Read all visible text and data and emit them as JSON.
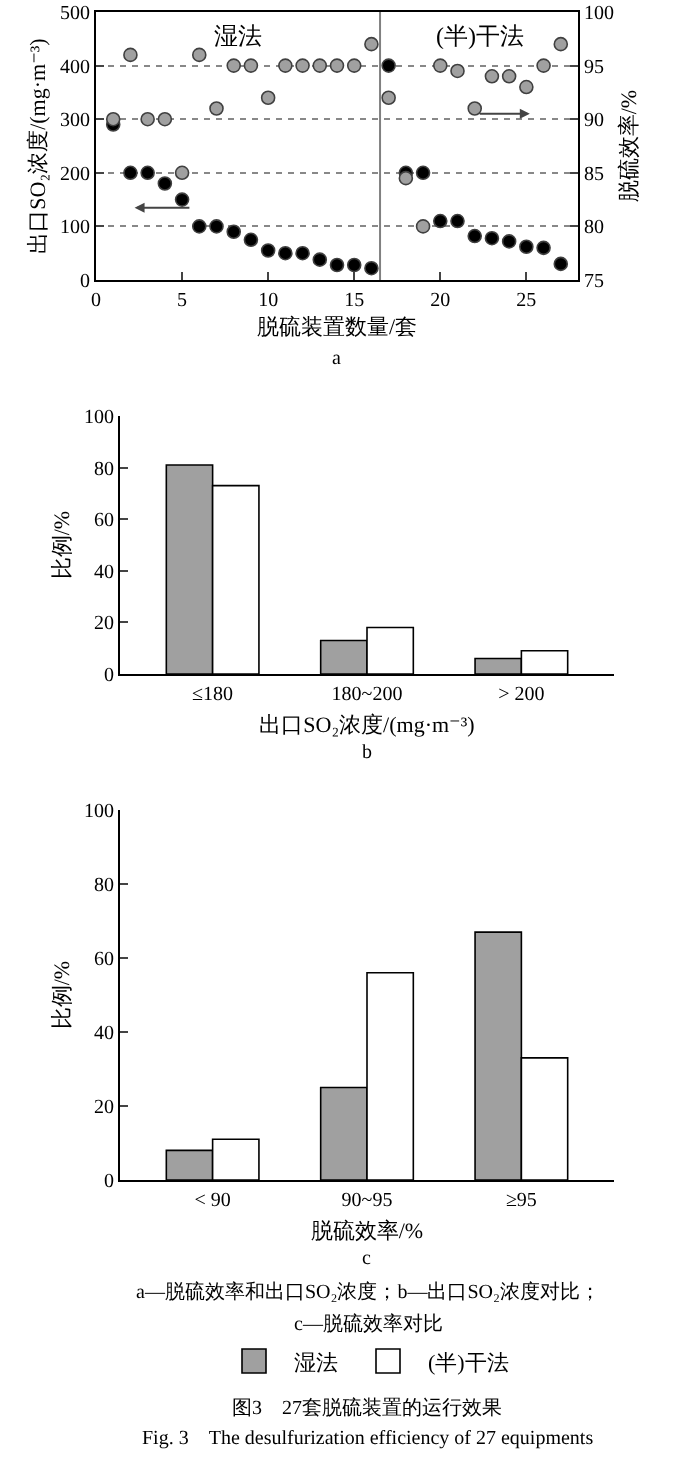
{
  "chart_data": [
    {
      "type": "scatter",
      "xlabel": "脱硫装置数量/套",
      "ylabel": "出口SO₂浓度/(mg·m⁻³)",
      "y2label": "脱硫效率/%",
      "x": [
        1,
        2,
        3,
        4,
        5,
        6,
        7,
        8,
        9,
        10,
        11,
        12,
        13,
        14,
        15,
        16,
        17,
        18,
        19,
        20,
        21,
        22,
        23,
        24,
        25,
        26,
        27
      ],
      "series": [
        {
          "color": "#000000",
          "values": [
            290,
            200,
            200,
            180,
            150,
            100,
            100,
            90,
            75,
            55,
            50,
            50,
            38,
            28,
            28,
            22,
            400,
            200,
            200,
            110,
            110,
            82,
            78,
            72,
            62,
            60,
            30
          ]
        },
        {
          "color": "#a0a0a0",
          "axis": "y2",
          "values": [
            90,
            96,
            90,
            90,
            85,
            96,
            91,
            95,
            95,
            92,
            95,
            95,
            95,
            95,
            95,
            97,
            92,
            84.5,
            80,
            95,
            94.5,
            91,
            94,
            94,
            93,
            95,
            97
          ]
        }
      ],
      "xlim": [
        0,
        28
      ],
      "xticks": [
        0,
        5,
        10,
        15,
        20,
        25
      ],
      "ylim": [
        0,
        500
      ],
      "yticks": [
        0,
        100,
        200,
        300,
        400,
        500
      ],
      "y2lim": [
        75,
        100
      ],
      "y2ticks": [
        75,
        80,
        85,
        90,
        95,
        100
      ],
      "grid": "y",
      "marker": "circle",
      "legend": false,
      "ref_lines": [
        {
          "axis": "x",
          "value": 16.5,
          "color": "#808080"
        }
      ],
      "annotations": [
        "湿法",
        "(半)干法",
        "a"
      ]
    },
    {
      "type": "bar",
      "xlabel": "出口SO₂浓度/(mg·m⁻³)",
      "ylabel": "比例/%",
      "categories": [
        "≤180",
        "180~200",
        "> 200"
      ],
      "series": [
        {
          "color": "#a0a0a0",
          "values": [
            81,
            13,
            6
          ]
        },
        {
          "color": "#ffffff",
          "values": [
            73,
            18,
            9
          ]
        }
      ],
      "ylim": [
        0,
        100
      ],
      "yticks": [
        0,
        20,
        40,
        60,
        80,
        100
      ],
      "grid": false,
      "legend": false,
      "annotations": [
        "b"
      ]
    },
    {
      "type": "bar",
      "xlabel": "脱硫效率/%",
      "ylabel": "比例/%",
      "categories": [
        "< 90",
        "90~95",
        "≥95"
      ],
      "series": [
        {
          "name": "湿法",
          "color": "#a0a0a0",
          "values": [
            8,
            25,
            67
          ]
        },
        {
          "name": "(半)干法",
          "color": "#ffffff",
          "values": [
            11,
            56,
            33
          ]
        }
      ],
      "ylim": [
        0,
        100
      ],
      "yticks": [
        0,
        20,
        40,
        60,
        80,
        100
      ],
      "grid": false,
      "legend": "bottom",
      "annotations": [
        "c",
        "a—脱硫效率和出口SO₂浓度；b—出口SO₂浓度对比；",
        "c—脱硫效率对比",
        "图3　27套脱硫装置的运行效果",
        "Fig. 3　The desulfurization efficiency of 27 equipments"
      ]
    }
  ]
}
